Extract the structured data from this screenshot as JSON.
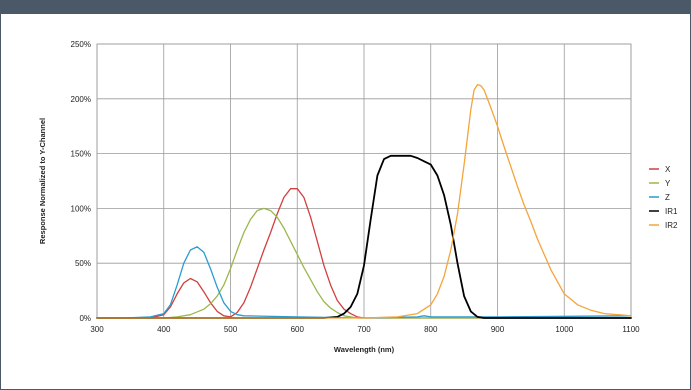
{
  "chart_data": {
    "type": "line",
    "title": "",
    "xlabel": "Wavelength (nm)",
    "ylabel": "Response Normalized to Y-Channel",
    "xlim": [
      300,
      1100
    ],
    "ylim": [
      0,
      250
    ],
    "x_ticks": [
      "300",
      "400",
      "500",
      "600",
      "700",
      "800",
      "900",
      "1000",
      "1100"
    ],
    "y_ticks": [
      "0%",
      "50%",
      "100%",
      "150%",
      "200%",
      "250%"
    ],
    "grid": true,
    "legend_position": "right",
    "series": [
      {
        "name": "X",
        "color": "#d0403f",
        "points": [
          [
            300,
            0
          ],
          [
            380,
            0
          ],
          [
            400,
            3
          ],
          [
            410,
            10
          ],
          [
            420,
            22
          ],
          [
            430,
            32
          ],
          [
            440,
            36
          ],
          [
            450,
            33
          ],
          [
            460,
            24
          ],
          [
            470,
            14
          ],
          [
            480,
            6
          ],
          [
            490,
            2
          ],
          [
            500,
            1
          ],
          [
            510,
            5
          ],
          [
            520,
            14
          ],
          [
            530,
            28
          ],
          [
            540,
            45
          ],
          [
            550,
            62
          ],
          [
            560,
            78
          ],
          [
            570,
            95
          ],
          [
            580,
            110
          ],
          [
            590,
            118
          ],
          [
            600,
            118
          ],
          [
            610,
            110
          ],
          [
            620,
            92
          ],
          [
            630,
            70
          ],
          [
            640,
            48
          ],
          [
            650,
            30
          ],
          [
            660,
            16
          ],
          [
            670,
            8
          ],
          [
            680,
            4
          ],
          [
            690,
            1
          ],
          [
            700,
            0
          ],
          [
            800,
            0
          ],
          [
            1100,
            0
          ]
        ]
      },
      {
        "name": "Y",
        "color": "#9ab84d",
        "points": [
          [
            300,
            0
          ],
          [
            400,
            0
          ],
          [
            420,
            1
          ],
          [
            440,
            3
          ],
          [
            460,
            8
          ],
          [
            470,
            13
          ],
          [
            480,
            20
          ],
          [
            490,
            30
          ],
          [
            500,
            45
          ],
          [
            510,
            62
          ],
          [
            520,
            78
          ],
          [
            530,
            90
          ],
          [
            540,
            98
          ],
          [
            550,
            100
          ],
          [
            560,
            98
          ],
          [
            570,
            92
          ],
          [
            580,
            82
          ],
          [
            590,
            70
          ],
          [
            600,
            58
          ],
          [
            610,
            46
          ],
          [
            620,
            35
          ],
          [
            630,
            24
          ],
          [
            640,
            15
          ],
          [
            650,
            9
          ],
          [
            660,
            5
          ],
          [
            670,
            2
          ],
          [
            690,
            0
          ],
          [
            1100,
            0
          ]
        ]
      },
      {
        "name": "Z",
        "color": "#2a9bd1",
        "points": [
          [
            300,
            0
          ],
          [
            340,
            0
          ],
          [
            380,
            1
          ],
          [
            400,
            4
          ],
          [
            410,
            12
          ],
          [
            420,
            30
          ],
          [
            430,
            50
          ],
          [
            440,
            62
          ],
          [
            450,
            65
          ],
          [
            460,
            60
          ],
          [
            470,
            45
          ],
          [
            480,
            28
          ],
          [
            490,
            14
          ],
          [
            500,
            6
          ],
          [
            510,
            3
          ],
          [
            520,
            2
          ],
          [
            600,
            1
          ],
          [
            700,
            0
          ],
          [
            780,
            1
          ],
          [
            790,
            2
          ],
          [
            800,
            1
          ],
          [
            900,
            1
          ],
          [
            1100,
            2
          ]
        ]
      },
      {
        "name": "IR1",
        "color": "#000000",
        "points": [
          [
            300,
            0
          ],
          [
            600,
            0
          ],
          [
            640,
            0
          ],
          [
            660,
            1
          ],
          [
            670,
            4
          ],
          [
            680,
            10
          ],
          [
            690,
            22
          ],
          [
            700,
            48
          ],
          [
            710,
            90
          ],
          [
            720,
            130
          ],
          [
            730,
            145
          ],
          [
            740,
            148
          ],
          [
            750,
            148
          ],
          [
            760,
            148
          ],
          [
            770,
            148
          ],
          [
            780,
            146
          ],
          [
            790,
            143
          ],
          [
            800,
            140
          ],
          [
            810,
            130
          ],
          [
            820,
            112
          ],
          [
            830,
            85
          ],
          [
            840,
            50
          ],
          [
            850,
            20
          ],
          [
            860,
            6
          ],
          [
            870,
            1
          ],
          [
            880,
            0
          ],
          [
            1100,
            0
          ]
        ]
      },
      {
        "name": "IR2",
        "color": "#f5a43a",
        "points": [
          [
            300,
            0
          ],
          [
            700,
            0
          ],
          [
            750,
            1
          ],
          [
            780,
            4
          ],
          [
            800,
            12
          ],
          [
            810,
            22
          ],
          [
            820,
            38
          ],
          [
            830,
            62
          ],
          [
            840,
            95
          ],
          [
            850,
            140
          ],
          [
            860,
            190
          ],
          [
            865,
            208
          ],
          [
            870,
            213
          ],
          [
            875,
            212
          ],
          [
            880,
            208
          ],
          [
            890,
            192
          ],
          [
            900,
            175
          ],
          [
            910,
            156
          ],
          [
            920,
            138
          ],
          [
            930,
            120
          ],
          [
            940,
            103
          ],
          [
            950,
            88
          ],
          [
            960,
            72
          ],
          [
            980,
            44
          ],
          [
            1000,
            22
          ],
          [
            1020,
            12
          ],
          [
            1040,
            7
          ],
          [
            1060,
            4
          ],
          [
            1080,
            3
          ],
          [
            1100,
            2
          ]
        ]
      }
    ]
  }
}
